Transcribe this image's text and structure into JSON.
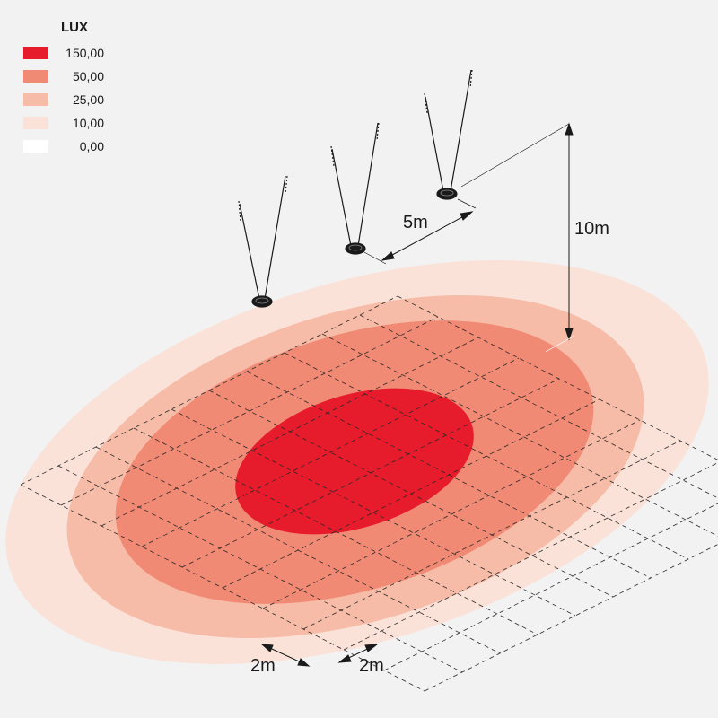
{
  "legend": {
    "title": "LUX",
    "items": [
      {
        "value": "150,00",
        "color": "#e61b2c"
      },
      {
        "value": "50,00",
        "color": "#f08a75"
      },
      {
        "value": "25,00",
        "color": "#f6bca8"
      },
      {
        "value": "10,00",
        "color": "#fbe2d8"
      },
      {
        "value": "0,00",
        "color": "#ffffff"
      }
    ]
  },
  "dimensions": {
    "spacing": "5m",
    "height": "10m",
    "grid_x": "2m",
    "grid_y": "2m"
  }
}
